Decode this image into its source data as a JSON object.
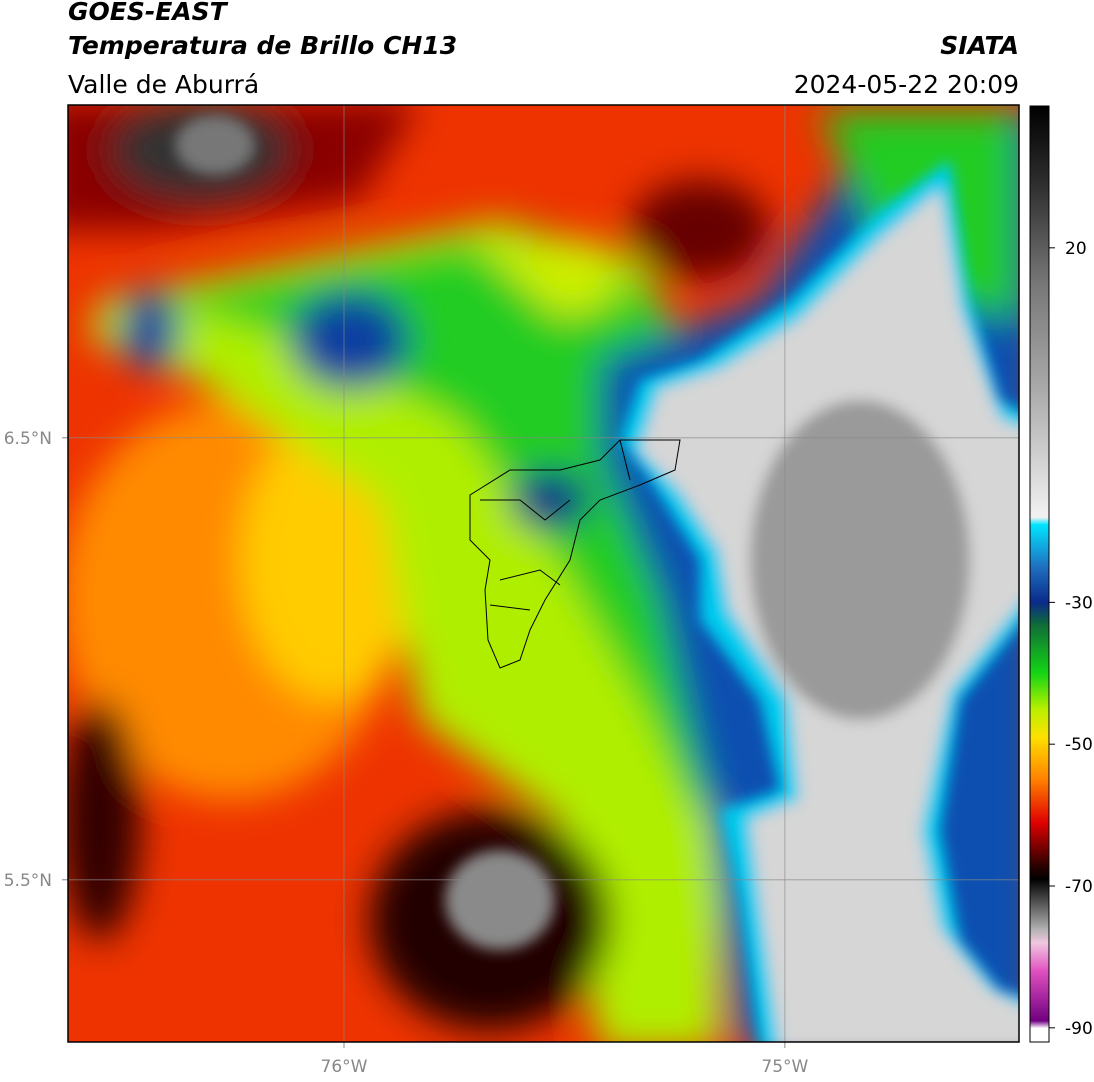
{
  "header": {
    "satellite": "GOES-EAST",
    "product": "Temperatura de Brillo CH13",
    "region": "Valle de Aburrá",
    "source": "SIATA",
    "datetime": "2024-05-22 20:09"
  },
  "map": {
    "xlim": [
      -76.626,
      -74.469
    ],
    "ylim": [
      5.133,
      7.253
    ],
    "xticks": [
      {
        "value": -76,
        "label": "76°W"
      },
      {
        "value": -75,
        "label": "75°W"
      }
    ],
    "yticks": [
      {
        "value": 6.5,
        "label": "6.5°N"
      },
      {
        "value": 5.5,
        "label": "5.5°N"
      }
    ],
    "grid": true
  },
  "colorbar": {
    "lim": [
      -92,
      40
    ],
    "ticks": [
      20,
      -30,
      -50,
      -70,
      -90
    ],
    "stops": [
      {
        "value": 40,
        "color": "#000000"
      },
      {
        "value": 28,
        "color": "#333333"
      },
      {
        "value": 15,
        "color": "#777777"
      },
      {
        "value": 0,
        "color": "#aaaaaa"
      },
      {
        "value": -18,
        "color": "#f2f2f2"
      },
      {
        "value": -19,
        "color": "#00e5ff"
      },
      {
        "value": -25,
        "color": "#1f6fc0"
      },
      {
        "value": -30,
        "color": "#0a2a8a"
      },
      {
        "value": -33,
        "color": "#0f6a3a"
      },
      {
        "value": -40,
        "color": "#14d614"
      },
      {
        "value": -45,
        "color": "#b8f000"
      },
      {
        "value": -49,
        "color": "#ffe000"
      },
      {
        "value": -55,
        "color": "#ff8000"
      },
      {
        "value": -61,
        "color": "#e00000"
      },
      {
        "value": -67,
        "color": "#300000"
      },
      {
        "value": -69,
        "color": "#000000"
      },
      {
        "value": -76,
        "color": "#b0b0b0"
      },
      {
        "value": -78,
        "color": "#f0c8e0"
      },
      {
        "value": -82,
        "color": "#e050c0"
      },
      {
        "value": -89,
        "color": "#700080"
      },
      {
        "value": -90,
        "color": "#ffffff"
      },
      {
        "value": -92,
        "color": "#ffffff"
      }
    ]
  }
}
